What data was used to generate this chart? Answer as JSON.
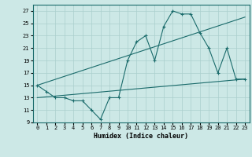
{
  "xlabel": "Humidex (Indice chaleur)",
  "bg_color": "#cce8e6",
  "line_color": "#1a6b6b",
  "grid_color": "#aacfcd",
  "xlim": [
    -0.5,
    23.5
  ],
  "ylim": [
    9,
    28
  ],
  "xticks": [
    0,
    1,
    2,
    3,
    4,
    5,
    6,
    7,
    8,
    9,
    10,
    11,
    12,
    13,
    14,
    15,
    16,
    17,
    18,
    19,
    20,
    21,
    22,
    23
  ],
  "yticks": [
    9,
    11,
    13,
    15,
    17,
    19,
    21,
    23,
    25,
    27
  ],
  "line1_x": [
    0,
    1,
    2,
    3,
    4,
    5,
    6,
    7,
    8,
    9,
    10,
    11,
    12,
    13,
    14,
    15,
    16,
    17,
    18,
    19,
    20,
    21,
    22,
    23
  ],
  "line1_y": [
    15,
    14,
    13,
    13,
    12.5,
    12.5,
    11,
    9.5,
    13,
    13,
    19,
    22,
    23,
    19,
    24.5,
    27,
    26.5,
    26.5,
    23.5,
    21,
    17,
    21,
    16,
    16
  ],
  "line2_x": [
    0,
    23
  ],
  "line2_y": [
    15,
    26
  ],
  "line3_x": [
    0,
    23
  ],
  "line3_y": [
    13,
    16
  ],
  "marker": "+"
}
